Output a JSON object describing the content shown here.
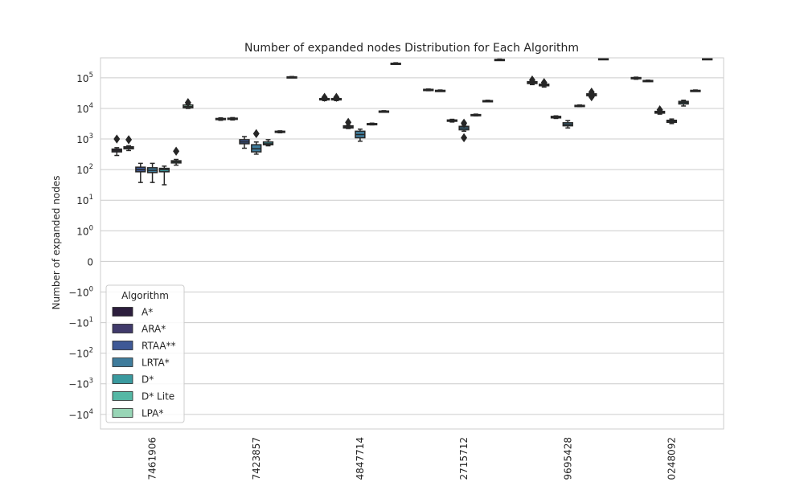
{
  "chart_data": {
    "type": "box",
    "title": "Number of expanded nodes Distribution for Each Algorithm",
    "xlabel": "",
    "ylabel": "Number of expanded nodes",
    "yscale": "symlog",
    "ylim": [
      -30000,
      450000
    ],
    "grid": "horizontal",
    "y_ticks": [
      {
        "value": 100000,
        "base": "10",
        "exp": "5"
      },
      {
        "value": 10000,
        "base": "10",
        "exp": "4"
      },
      {
        "value": 1000,
        "base": "10",
        "exp": "3"
      },
      {
        "value": 100,
        "base": "10",
        "exp": "2"
      },
      {
        "value": 10,
        "base": "10",
        "exp": "1"
      },
      {
        "value": 1,
        "base": "10",
        "exp": "0"
      },
      {
        "value": 0,
        "base": "0",
        "exp": ""
      },
      {
        "value": -1,
        "base": "−10",
        "exp": "0"
      },
      {
        "value": -10,
        "base": "−10",
        "exp": "1"
      },
      {
        "value": -100,
        "base": "−10",
        "exp": "2"
      },
      {
        "value": -1000,
        "base": "−10",
        "exp": "3"
      },
      {
        "value": -10000,
        "base": "−10",
        "exp": "4"
      }
    ],
    "categories": [
      "7461906",
      "7423857",
      "4847714",
      "2715712",
      "9695428",
      "0248092"
    ],
    "legend": {
      "title": "Algorithm",
      "position": "lower-left"
    },
    "series": [
      {
        "name": "A*",
        "color": "#2c1e3d",
        "boxes": [
          {
            "whislo": 290,
            "q1": 380,
            "med": 420,
            "q3": 470,
            "whishi": 520,
            "fliers": [
              1000
            ]
          },
          {
            "whislo": 4100,
            "q1": 4300,
            "med": 4500,
            "q3": 4700,
            "whishi": 4900,
            "fliers": []
          },
          {
            "whislo": 18000,
            "q1": 19000,
            "med": 20000,
            "q3": 21000,
            "whishi": 22000,
            "fliers": [
              23000
            ]
          },
          {
            "whislo": 38000,
            "q1": 40000,
            "med": 41000,
            "q3": 42000,
            "whishi": 43000,
            "fliers": []
          },
          {
            "whislo": 60000,
            "q1": 65000,
            "med": 70000,
            "q3": 75000,
            "whishi": 80000,
            "fliers": [
              85000
            ]
          },
          {
            "whislo": 90000,
            "q1": 95000,
            "med": 100000,
            "q3": 102000,
            "whishi": 105000,
            "fliers": []
          }
        ]
      },
      {
        "name": "ARA*",
        "color": "#403a6b",
        "boxes": [
          {
            "whislo": 420,
            "q1": 480,
            "med": 520,
            "q3": 560,
            "whishi": 600,
            "fliers": [
              950
            ]
          },
          {
            "whislo": 4200,
            "q1": 4400,
            "med": 4600,
            "q3": 4800,
            "whishi": 5000,
            "fliers": []
          },
          {
            "whislo": 18000,
            "q1": 19000,
            "med": 20000,
            "q3": 21000,
            "whishi": 22000,
            "fliers": [
              23000
            ]
          },
          {
            "whislo": 36000,
            "q1": 37000,
            "med": 38000,
            "q3": 39000,
            "whishi": 40000,
            "fliers": []
          },
          {
            "whislo": 50000,
            "q1": 55000,
            "med": 58000,
            "q3": 62000,
            "whishi": 66000,
            "fliers": [
              70000
            ]
          },
          {
            "whislo": 76000,
            "q1": 78000,
            "med": 80000,
            "q3": 82000,
            "whishi": 84000,
            "fliers": []
          }
        ]
      },
      {
        "name": "RTAA**",
        "color": "#3f5996",
        "boxes": [
          {
            "whislo": 38,
            "q1": 85,
            "med": 100,
            "q3": 120,
            "whishi": 160,
            "fliers": []
          },
          {
            "whislo": 500,
            "q1": 700,
            "med": 800,
            "q3": 950,
            "whishi": 1200,
            "fliers": []
          },
          {
            "whislo": 2200,
            "q1": 2300,
            "med": 2500,
            "q3": 2700,
            "whishi": 2800,
            "fliers": [
              3500
            ]
          },
          {
            "whislo": 3600,
            "q1": 3800,
            "med": 4000,
            "q3": 4200,
            "whishi": 4400,
            "fliers": []
          },
          {
            "whislo": 4700,
            "q1": 4900,
            "med": 5200,
            "q3": 5500,
            "whishi": 5700,
            "fliers": []
          },
          {
            "whislo": 6500,
            "q1": 7000,
            "med": 7500,
            "q3": 8000,
            "whishi": 8500,
            "fliers": [
              9000
            ]
          }
        ]
      },
      {
        "name": "LRTA*",
        "color": "#3f7c9c",
        "boxes": [
          {
            "whislo": 38,
            "q1": 80,
            "med": 95,
            "q3": 115,
            "whishi": 160,
            "fliers": []
          },
          {
            "whislo": 320,
            "q1": 380,
            "med": 480,
            "q3": 650,
            "whishi": 800,
            "fliers": [
              1500
            ]
          },
          {
            "whislo": 850,
            "q1": 1100,
            "med": 1400,
            "q3": 1800,
            "whishi": 2100,
            "fliers": []
          },
          {
            "whislo": 1800,
            "q1": 2000,
            "med": 2300,
            "q3": 2600,
            "whishi": 2900,
            "fliers": [
              1100,
              3300
            ]
          },
          {
            "whislo": 2300,
            "q1": 2700,
            "med": 3000,
            "q3": 3400,
            "whishi": 4000,
            "fliers": []
          },
          {
            "whislo": 3200,
            "q1": 3500,
            "med": 3800,
            "q3": 4100,
            "whishi": 4500,
            "fliers": []
          }
        ]
      },
      {
        "name": "D*",
        "color": "#3a9a9f",
        "boxes": [
          {
            "whislo": 32,
            "q1": 85,
            "med": 100,
            "q3": 110,
            "whishi": 130,
            "fliers": []
          },
          {
            "whislo": 600,
            "q1": 650,
            "med": 700,
            "q3": 800,
            "whishi": 950,
            "fliers": []
          },
          {
            "whislo": 2900,
            "q1": 3000,
            "med": 3100,
            "q3": 3200,
            "whishi": 3300,
            "fliers": []
          },
          {
            "whislo": 5700,
            "q1": 5900,
            "med": 6100,
            "q3": 6300,
            "whishi": 6500,
            "fliers": []
          },
          {
            "whislo": 11500,
            "q1": 12000,
            "med": 12300,
            "q3": 12600,
            "whishi": 13000,
            "fliers": []
          },
          {
            "whislo": 12000,
            "q1": 14000,
            "med": 15500,
            "q3": 17000,
            "whishi": 18500,
            "fliers": []
          }
        ]
      },
      {
        "name": "D* Lite",
        "color": "#55b8a5",
        "boxes": [
          {
            "whislo": 140,
            "q1": 165,
            "med": 180,
            "q3": 195,
            "whishi": 215,
            "fliers": [
              400
            ]
          },
          {
            "whislo": 1600,
            "q1": 1700,
            "med": 1750,
            "q3": 1800,
            "whishi": 1850,
            "fliers": []
          },
          {
            "whislo": 7500,
            "q1": 7800,
            "med": 8000,
            "q3": 8200,
            "whishi": 8400,
            "fliers": []
          },
          {
            "whislo": 16500,
            "q1": 17000,
            "med": 17500,
            "q3": 18000,
            "whishi": 18500,
            "fliers": []
          },
          {
            "whislo": 24000,
            "q1": 26000,
            "med": 28000,
            "q3": 30000,
            "whishi": 32000,
            "fliers": [
              24000,
              34000
            ]
          },
          {
            "whislo": 36000,
            "q1": 37000,
            "med": 38000,
            "q3": 39000,
            "whishi": 40000,
            "fliers": []
          }
        ]
      },
      {
        "name": "LPA*",
        "color": "#98d5b6",
        "boxes": [
          {
            "whislo": 10000,
            "q1": 10500,
            "med": 11500,
            "q3": 13000,
            "whishi": 14000,
            "fliers": [
              15500
            ]
          },
          {
            "whislo": 104000,
            "q1": 106000,
            "med": 107000,
            "q3": 108000,
            "whishi": 110000,
            "fliers": []
          },
          {
            "whislo": 280000,
            "q1": 290000,
            "med": 295000,
            "q3": 300000,
            "whishi": 310000,
            "fliers": []
          },
          {
            "whislo": 370000,
            "q1": 380000,
            "med": 390000,
            "q3": 400000,
            "whishi": 410000,
            "fliers": []
          },
          {
            "whislo": 410000,
            "q1": 415000,
            "med": 420000,
            "q3": 425000,
            "whishi": 430000,
            "fliers": []
          },
          {
            "whislo": 410000,
            "q1": 415000,
            "med": 420000,
            "q3": 425000,
            "whishi": 430000,
            "fliers": []
          }
        ]
      }
    ]
  }
}
